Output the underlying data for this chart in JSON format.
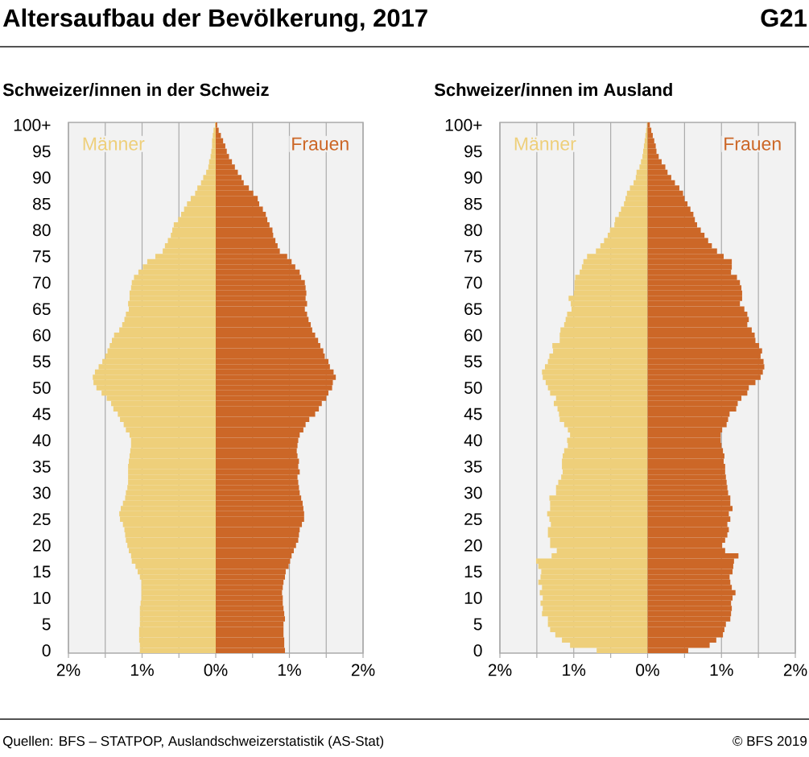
{
  "chart_data": [
    {
      "type": "bar",
      "orientation": "horizontal",
      "title": "Altersaufbau der Bevölkerung, 2017",
      "subtitle": "Schweizer/innen in der Schweiz",
      "annotations": [
        "G21",
        "Quellen: BFS – STATPOP, Auslandschweizerstatistik (AS-Stat)",
        "© BFS 2019"
      ],
      "categories": [
        "100+",
        null,
        null,
        null,
        null,
        "95",
        null,
        null,
        null,
        null,
        "90",
        null,
        null,
        null,
        null,
        "85",
        null,
        null,
        null,
        null,
        "80",
        null,
        null,
        null,
        null,
        "75",
        null,
        null,
        null,
        null,
        "70",
        null,
        null,
        null,
        null,
        "65",
        null,
        null,
        null,
        null,
        "60",
        null,
        null,
        null,
        null,
        "55",
        null,
        null,
        null,
        null,
        "50",
        null,
        null,
        null,
        null,
        "45",
        null,
        null,
        null,
        null,
        "40",
        null,
        null,
        null,
        null,
        "35",
        null,
        null,
        null,
        null,
        "30",
        null,
        null,
        null,
        null,
        "25",
        null,
        null,
        null,
        null,
        "20",
        null,
        null,
        null,
        null,
        "15",
        null,
        null,
        null,
        null,
        "10",
        null,
        null,
        null,
        null,
        "5",
        null,
        null,
        null,
        null,
        "0"
      ],
      "series": [
        {
          "name": "Männer",
          "color": "#eecf7a",
          "values": [
            -0.01,
            -0.03,
            -0.04,
            -0.05,
            -0.05,
            -0.06,
            -0.07,
            -0.09,
            -0.1,
            -0.13,
            -0.17,
            -0.2,
            -0.25,
            -0.28,
            -0.34,
            -0.39,
            -0.43,
            -0.47,
            -0.51,
            -0.57,
            -0.59,
            -0.61,
            -0.65,
            -0.69,
            -0.72,
            -0.82,
            -0.93,
            -0.99,
            -1.05,
            -1.11,
            -1.14,
            -1.15,
            -1.17,
            -1.17,
            -1.19,
            -1.18,
            -1.22,
            -1.24,
            -1.27,
            -1.31,
            -1.38,
            -1.41,
            -1.44,
            -1.47,
            -1.5,
            -1.54,
            -1.59,
            -1.64,
            -1.67,
            -1.66,
            -1.62,
            -1.55,
            -1.48,
            -1.42,
            -1.39,
            -1.33,
            -1.3,
            -1.25,
            -1.22,
            -1.17,
            -1.15,
            -1.15,
            -1.16,
            -1.17,
            -1.18,
            -1.19,
            -1.19,
            -1.19,
            -1.19,
            -1.2,
            -1.22,
            -1.23,
            -1.26,
            -1.29,
            -1.31,
            -1.3,
            -1.26,
            -1.24,
            -1.23,
            -1.22,
            -1.2,
            -1.18,
            -1.15,
            -1.14,
            -1.09,
            -1.06,
            -1.03,
            -1.01,
            -1.01,
            -1.01,
            -1.01,
            -1.02,
            -1.03,
            -1.03,
            -1.03,
            -1.03,
            -1.04,
            -1.04,
            -1.04,
            -1.03,
            -1.03
          ]
        },
        {
          "name": "Frauen",
          "color": "#cc6727",
          "values": [
            0.02,
            0.04,
            0.07,
            0.1,
            0.13,
            0.15,
            0.18,
            0.22,
            0.26,
            0.3,
            0.35,
            0.38,
            0.45,
            0.51,
            0.57,
            0.59,
            0.64,
            0.68,
            0.7,
            0.73,
            0.77,
            0.78,
            0.81,
            0.84,
            0.87,
            0.97,
            1.03,
            1.08,
            1.14,
            1.16,
            1.21,
            1.22,
            1.23,
            1.22,
            1.24,
            1.21,
            1.24,
            1.26,
            1.29,
            1.31,
            1.35,
            1.39,
            1.42,
            1.46,
            1.48,
            1.53,
            1.55,
            1.6,
            1.63,
            1.59,
            1.58,
            1.53,
            1.5,
            1.44,
            1.4,
            1.35,
            1.27,
            1.22,
            1.19,
            1.14,
            1.12,
            1.11,
            1.1,
            1.11,
            1.13,
            1.12,
            1.14,
            1.11,
            1.12,
            1.13,
            1.14,
            1.16,
            1.18,
            1.19,
            1.2,
            1.2,
            1.17,
            1.14,
            1.13,
            1.12,
            1.09,
            1.06,
            1.03,
            1.01,
            0.99,
            0.95,
            0.94,
            0.92,
            0.91,
            0.9,
            0.91,
            0.91,
            0.92,
            0.93,
            0.94,
            0.92,
            0.92,
            0.92,
            0.93,
            0.93,
            0.94
          ]
        }
      ],
      "xlim": [
        -2,
        2
      ],
      "xticks": [
        {
          "value": -2,
          "label": "2%"
        },
        {
          "value": -1.5,
          "label": null
        },
        {
          "value": -1,
          "label": "1%"
        },
        {
          "value": -0.5,
          "label": null
        },
        {
          "value": 0,
          "label": "0%"
        },
        {
          "value": 0.5,
          "label": null
        },
        {
          "value": 1,
          "label": "1%"
        },
        {
          "value": 1.5,
          "label": null
        },
        {
          "value": 2,
          "label": "2%"
        }
      ],
      "grid": "x",
      "stacked": true
    },
    {
      "type": "bar",
      "orientation": "horizontal",
      "subtitle": "Schweizer/innen im Ausland",
      "categories": [
        "100+",
        null,
        null,
        null,
        null,
        "95",
        null,
        null,
        null,
        null,
        "90",
        null,
        null,
        null,
        null,
        "85",
        null,
        null,
        null,
        null,
        "80",
        null,
        null,
        null,
        null,
        "75",
        null,
        null,
        null,
        null,
        "70",
        null,
        null,
        null,
        null,
        "65",
        null,
        null,
        null,
        null,
        "60",
        null,
        null,
        null,
        null,
        "55",
        null,
        null,
        null,
        null,
        "50",
        null,
        null,
        null,
        null,
        "45",
        null,
        null,
        null,
        null,
        "40",
        null,
        null,
        null,
        null,
        "35",
        null,
        null,
        null,
        null,
        "30",
        null,
        null,
        null,
        null,
        "25",
        null,
        null,
        null,
        null,
        "20",
        null,
        null,
        null,
        null,
        "15",
        null,
        null,
        null,
        null,
        "10",
        null,
        null,
        null,
        null,
        "5",
        null,
        null,
        null,
        null,
        "0"
      ],
      "series": [
        {
          "name": "Männer",
          "color": "#eecf7a",
          "values": [
            -0.01,
            -0.02,
            -0.03,
            -0.04,
            -0.05,
            -0.06,
            -0.07,
            -0.09,
            -0.11,
            -0.15,
            -0.16,
            -0.19,
            -0.24,
            -0.28,
            -0.3,
            -0.32,
            -0.36,
            -0.39,
            -0.44,
            -0.45,
            -0.51,
            -0.54,
            -0.59,
            -0.64,
            -0.7,
            -0.82,
            -0.87,
            -0.89,
            -0.92,
            -0.98,
            -0.99,
            -0.99,
            -1.0,
            -1.07,
            -1.04,
            -1.03,
            -1.09,
            -1.11,
            -1.13,
            -1.18,
            -1.19,
            -1.19,
            -1.29,
            -1.28,
            -1.33,
            -1.35,
            -1.39,
            -1.43,
            -1.42,
            -1.38,
            -1.35,
            -1.32,
            -1.24,
            -1.27,
            -1.22,
            -1.2,
            -1.19,
            -1.13,
            -1.08,
            -1.05,
            -1.09,
            -1.08,
            -1.13,
            -1.15,
            -1.16,
            -1.16,
            -1.15,
            -1.17,
            -1.21,
            -1.24,
            -1.24,
            -1.33,
            -1.32,
            -1.32,
            -1.36,
            -1.33,
            -1.31,
            -1.35,
            -1.35,
            -1.32,
            -1.32,
            -1.23,
            -1.3,
            -1.51,
            -1.48,
            -1.44,
            -1.45,
            -1.48,
            -1.43,
            -1.46,
            -1.42,
            -1.45,
            -1.42,
            -1.43,
            -1.35,
            -1.35,
            -1.32,
            -1.25,
            -1.16,
            -1.05,
            -0.69
          ]
        },
        {
          "name": "Frauen",
          "color": "#cc6727",
          "values": [
            0.03,
            0.05,
            0.07,
            0.09,
            0.11,
            0.12,
            0.15,
            0.19,
            0.24,
            0.27,
            0.32,
            0.37,
            0.43,
            0.48,
            0.5,
            0.54,
            0.58,
            0.62,
            0.64,
            0.67,
            0.72,
            0.77,
            0.82,
            0.87,
            0.94,
            1.03,
            1.14,
            1.14,
            1.13,
            1.21,
            1.25,
            1.27,
            1.28,
            1.28,
            1.25,
            1.31,
            1.35,
            1.37,
            1.35,
            1.41,
            1.45,
            1.46,
            1.51,
            1.55,
            1.53,
            1.57,
            1.58,
            1.56,
            1.53,
            1.46,
            1.37,
            1.35,
            1.27,
            1.22,
            1.2,
            1.11,
            1.09,
            1.07,
            1.01,
            0.99,
            0.99,
            1.0,
            1.02,
            1.04,
            1.03,
            1.05,
            1.05,
            1.06,
            1.07,
            1.08,
            1.09,
            1.12,
            1.12,
            1.15,
            1.1,
            1.12,
            1.08,
            1.1,
            1.08,
            1.05,
            1.01,
            1.05,
            1.23,
            1.17,
            1.16,
            1.15,
            1.11,
            1.12,
            1.14,
            1.19,
            1.15,
            1.13,
            1.14,
            1.13,
            1.12,
            1.06,
            1.04,
            1.02,
            0.93,
            0.84,
            0.55
          ]
        }
      ],
      "xlim": [
        -2,
        2
      ],
      "xticks": [
        {
          "value": -2,
          "label": "2%"
        },
        {
          "value": -1.5,
          "label": null
        },
        {
          "value": -1,
          "label": "1%"
        },
        {
          "value": -0.5,
          "label": null
        },
        {
          "value": 0,
          "label": "0%"
        },
        {
          "value": 0.5,
          "label": null
        },
        {
          "value": 1,
          "label": "1%"
        },
        {
          "value": 1.5,
          "label": null
        },
        {
          "value": 2,
          "label": "2%"
        }
      ],
      "grid": "x",
      "stacked": true
    }
  ]
}
